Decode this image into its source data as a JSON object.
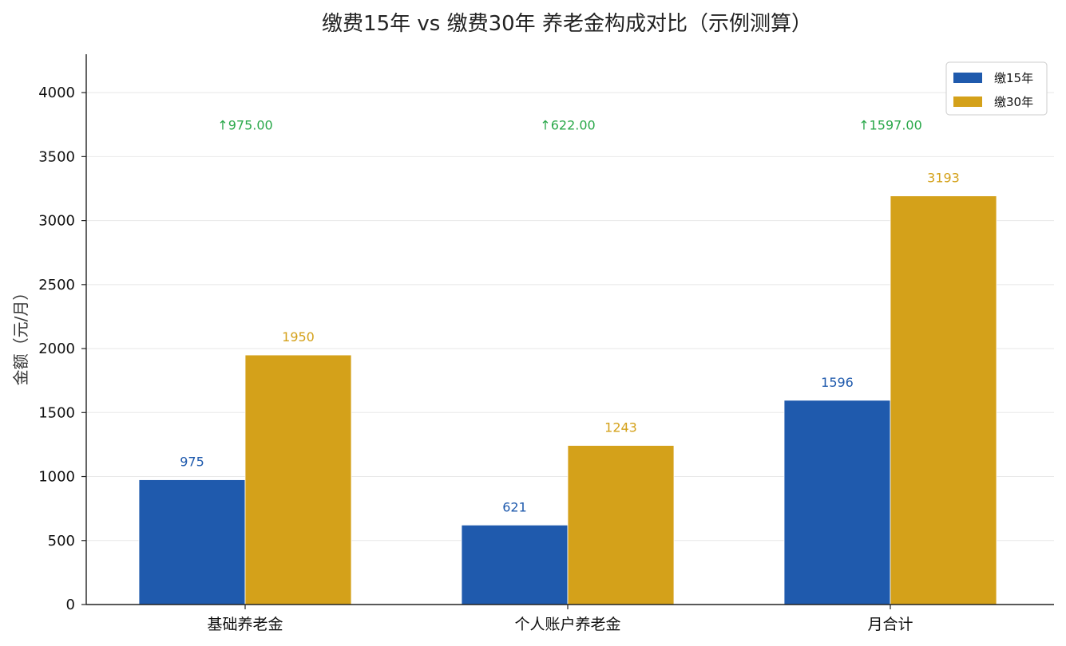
{
  "chart_data": {
    "type": "bar",
    "title": "缴费15年 vs 缴费30年 养老金构成对比（示例测算）",
    "xlabel": "",
    "ylabel": "金额（元/月）",
    "ylim": [
      0,
      4300
    ],
    "yticks": [
      0,
      500,
      1000,
      1500,
      2000,
      2500,
      3000,
      3500,
      4000
    ],
    "categories": [
      "基础养老金",
      "个人账户养老金",
      "月合计"
    ],
    "series": [
      {
        "name": "缴15年",
        "color": "#1f5aad",
        "values": [
          975,
          621,
          1596
        ],
        "value_labels": [
          "975",
          "621",
          "1596"
        ]
      },
      {
        "name": "缴30年",
        "color": "#d4a11a",
        "values": [
          1950,
          1243,
          3193
        ],
        "value_labels": [
          "1950",
          "1243",
          "3193"
        ]
      }
    ],
    "differences": {
      "values": [
        975.0,
        622.0,
        1597.0
      ],
      "labels": [
        "↑975.00",
        "↑622.00",
        "↑1597.00"
      ],
      "color": "#2aa84a",
      "y_position": 3750
    },
    "grid": true,
    "legend_position": "top-right"
  }
}
